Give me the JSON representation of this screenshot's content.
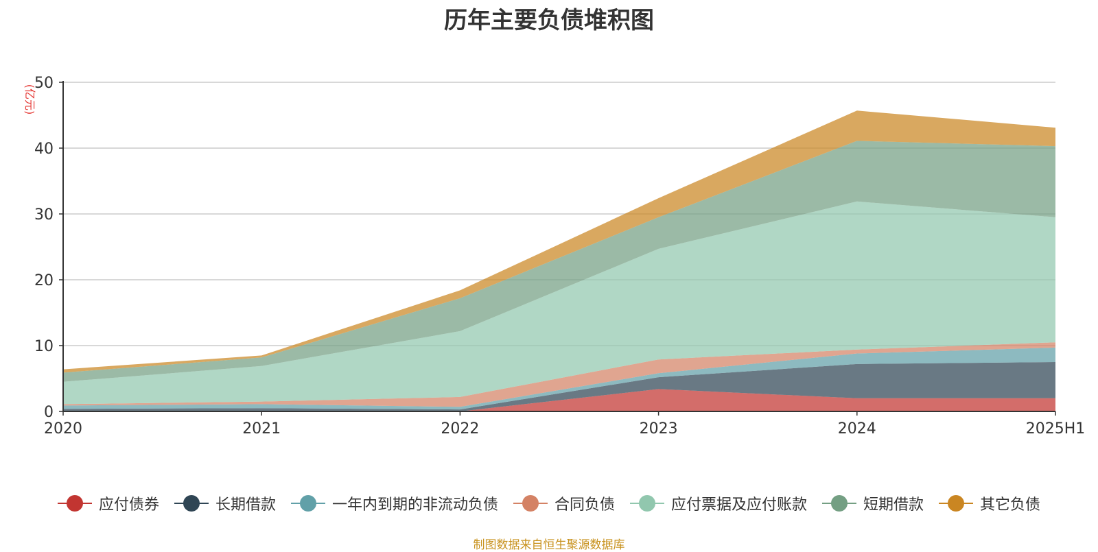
{
  "chart_data": {
    "type": "area",
    "stacked": true,
    "title": "历年主要负债堆积图",
    "ylabel": "(亿元)",
    "xlabel": "",
    "categories": [
      "2020",
      "2021",
      "2022",
      "2023",
      "2024",
      "2025H1"
    ],
    "ylim": [
      0,
      50
    ],
    "yticks": [
      0,
      10,
      20,
      30,
      40,
      50
    ],
    "grid": true,
    "legend_position": "bottom",
    "series": [
      {
        "name": "应付债券",
        "color": "#c23531",
        "values": [
          0,
          0,
          0,
          3.4,
          2.0,
          2.0
        ]
      },
      {
        "name": "长期借款",
        "color": "#2f4554",
        "values": [
          0.4,
          0.5,
          0.3,
          1.8,
          5.2,
          5.5
        ]
      },
      {
        "name": "一年内到期的非流动负债",
        "color": "#61a0a8",
        "values": [
          0.5,
          0.6,
          0.4,
          0.6,
          1.6,
          2.2
        ]
      },
      {
        "name": "合同负债",
        "color": "#d48265",
        "values": [
          0.2,
          0.4,
          1.5,
          2.1,
          0.6,
          0.8
        ]
      },
      {
        "name": "应付票据及应付账款",
        "color": "#91c7ae",
        "values": [
          3.4,
          5.4,
          10.0,
          16.8,
          22.5,
          19.0
        ]
      },
      {
        "name": "短期借款",
        "color": "#749f83",
        "values": [
          1.4,
          1.3,
          5.0,
          4.8,
          9.2,
          10.8
        ]
      },
      {
        "name": "其它负债",
        "color": "#ca8622",
        "values": [
          0.5,
          0.3,
          1.2,
          2.9,
          4.6,
          2.8
        ]
      }
    ]
  },
  "source_note": "制图数据来自恒生聚源数据库"
}
